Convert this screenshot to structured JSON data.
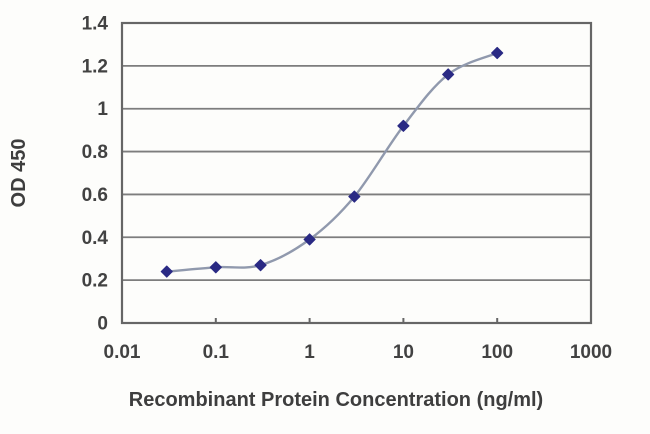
{
  "figure": {
    "background": "#fdfdfb"
  },
  "chart_data": {
    "type": "line",
    "title": "",
    "xlabel": "Recombinant Protein Concentration (ng/ml)",
    "ylabel": "OD 450",
    "x_scale": "log",
    "xlim": [
      0.01,
      1000
    ],
    "ylim": [
      0,
      1.4
    ],
    "x": [
      0.03,
      0.1,
      0.3,
      1,
      3,
      10,
      30,
      100
    ],
    "y": [
      0.24,
      0.26,
      0.27,
      0.39,
      0.59,
      0.92,
      1.16,
      1.26
    ],
    "x_ticks": [
      {
        "value": 0.01,
        "label": "0.01"
      },
      {
        "value": 0.1,
        "label": "0.1"
      },
      {
        "value": 1,
        "label": "1"
      },
      {
        "value": 10,
        "label": "10"
      },
      {
        "value": 100,
        "label": "100"
      },
      {
        "value": 1000,
        "label": "1000"
      }
    ],
    "y_ticks": [
      {
        "value": 0,
        "label": "0"
      },
      {
        "value": 0.2,
        "label": "0.2"
      },
      {
        "value": 0.4,
        "label": "0.4"
      },
      {
        "value": 0.6,
        "label": "0.6"
      },
      {
        "value": 0.8,
        "label": "0.8"
      },
      {
        "value": 1,
        "label": "1"
      },
      {
        "value": 1.2,
        "label": "1.2"
      },
      {
        "value": 1.4,
        "label": "1.4"
      }
    ],
    "grid": "horizontal-only",
    "legend": "none",
    "marker": "diamond",
    "smooth": true,
    "colors": {
      "marker": "#2a2a84",
      "line": "#9099ad",
      "grid": "#7d7d7d",
      "axis": "#666666",
      "text": "#424242"
    }
  }
}
